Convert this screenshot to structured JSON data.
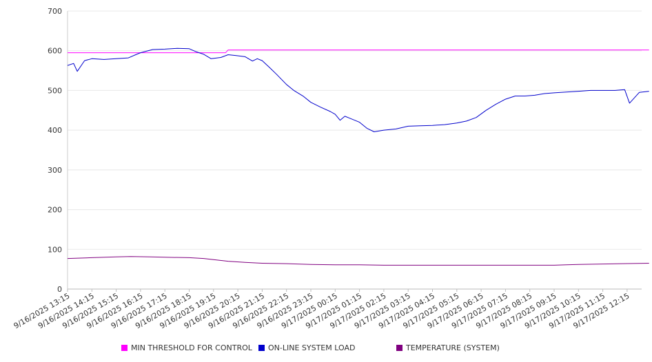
{
  "chart_data": {
    "type": "line",
    "title": "",
    "xlabel": "",
    "ylabel": "",
    "ylim": [
      0,
      700
    ],
    "yticks": [
      0,
      100,
      200,
      300,
      400,
      500,
      600,
      700
    ],
    "grid": true,
    "legend_position": "bottom",
    "x_categories": [
      "9/16/2025 13:15",
      "9/16/2025 14:15",
      "9/16/2025 15:15",
      "9/16/2025 16:15",
      "9/16/2025 17:15",
      "9/16/2025 18:15",
      "9/16/2025 19:15",
      "9/16/2025 20:15",
      "9/16/2025 21:15",
      "9/16/2025 22:15",
      "9/16/2025 23:15",
      "9/17/2025 00:15",
      "9/17/2025 01:15",
      "9/17/2025 02:15",
      "9/17/2025 03:15",
      "9/17/2025 04:15",
      "9/17/2025 05:15",
      "9/17/2025 06:15",
      "9/17/2025 07:15",
      "9/17/2025 08:15",
      "9/17/2025 09:15",
      "9/17/2025 10:15",
      "9/17/2025 11:15",
      "9/17/2025 12:15"
    ],
    "series": [
      {
        "name": "MIN THRESHOLD FOR CONTROL",
        "color": "#ff00ff",
        "points": [
          [
            0,
            595
          ],
          [
            6.5,
            595
          ],
          [
            6.6,
            602
          ],
          [
            23.9,
            602
          ]
        ]
      },
      {
        "name": "ON-LINE SYSTEM LOAD",
        "color": "#0000cc",
        "points": [
          [
            0,
            563
          ],
          [
            0.25,
            568
          ],
          [
            0.4,
            548
          ],
          [
            0.7,
            575
          ],
          [
            1.0,
            580
          ],
          [
            1.5,
            578
          ],
          [
            2.0,
            580
          ],
          [
            2.5,
            582
          ],
          [
            2.8,
            590
          ],
          [
            3.0,
            595
          ],
          [
            3.5,
            603
          ],
          [
            4.0,
            604
          ],
          [
            4.5,
            606
          ],
          [
            5.0,
            605
          ],
          [
            5.3,
            597
          ],
          [
            5.6,
            591
          ],
          [
            5.9,
            580
          ],
          [
            6.3,
            583
          ],
          [
            6.6,
            590
          ],
          [
            6.9,
            588
          ],
          [
            7.3,
            585
          ],
          [
            7.6,
            574
          ],
          [
            7.8,
            580
          ],
          [
            8.0,
            575
          ],
          [
            8.3,
            558
          ],
          [
            8.6,
            540
          ],
          [
            9.0,
            515
          ],
          [
            9.3,
            500
          ],
          [
            9.7,
            485
          ],
          [
            10.0,
            470
          ],
          [
            10.4,
            458
          ],
          [
            10.8,
            447
          ],
          [
            11.0,
            440
          ],
          [
            11.2,
            425
          ],
          [
            11.4,
            435
          ],
          [
            11.6,
            430
          ],
          [
            12.0,
            420
          ],
          [
            12.3,
            405
          ],
          [
            12.6,
            396
          ],
          [
            13.0,
            400
          ],
          [
            13.5,
            403
          ],
          [
            14.0,
            410
          ],
          [
            14.5,
            411
          ],
          [
            15.0,
            412
          ],
          [
            15.5,
            414
          ],
          [
            16.0,
            418
          ],
          [
            16.4,
            423
          ],
          [
            16.8,
            432
          ],
          [
            17.2,
            450
          ],
          [
            17.6,
            465
          ],
          [
            18.0,
            478
          ],
          [
            18.4,
            486
          ],
          [
            18.8,
            486
          ],
          [
            19.2,
            488
          ],
          [
            19.6,
            492
          ],
          [
            20.0,
            494
          ],
          [
            20.5,
            496
          ],
          [
            21.0,
            498
          ],
          [
            21.5,
            500
          ],
          [
            22.0,
            500
          ],
          [
            22.5,
            500
          ],
          [
            22.9,
            502
          ],
          [
            23.1,
            468
          ],
          [
            23.5,
            495
          ],
          [
            23.9,
            498
          ]
        ]
      },
      {
        "name": "TEMPERATURE (SYSTEM)",
        "color": "#800080",
        "points": [
          [
            0,
            77
          ],
          [
            1.0,
            79
          ],
          [
            2.0,
            81
          ],
          [
            2.6,
            82
          ],
          [
            3.4,
            81
          ],
          [
            4.0,
            80
          ],
          [
            5.0,
            79
          ],
          [
            5.6,
            77
          ],
          [
            6.0,
            74
          ],
          [
            6.6,
            70
          ],
          [
            7.3,
            67
          ],
          [
            8.0,
            65
          ],
          [
            9.0,
            64
          ],
          [
            10.0,
            62
          ],
          [
            11.0,
            61
          ],
          [
            12.0,
            61
          ],
          [
            13.0,
            60
          ],
          [
            14.0,
            60
          ],
          [
            15.0,
            60
          ],
          [
            16.0,
            60
          ],
          [
            17.0,
            60
          ],
          [
            18.0,
            60
          ],
          [
            19.0,
            60
          ],
          [
            20.0,
            60
          ],
          [
            20.5,
            61
          ],
          [
            21.0,
            62
          ],
          [
            22.0,
            63
          ],
          [
            22.8,
            64
          ],
          [
            23.9,
            65
          ]
        ]
      }
    ]
  }
}
